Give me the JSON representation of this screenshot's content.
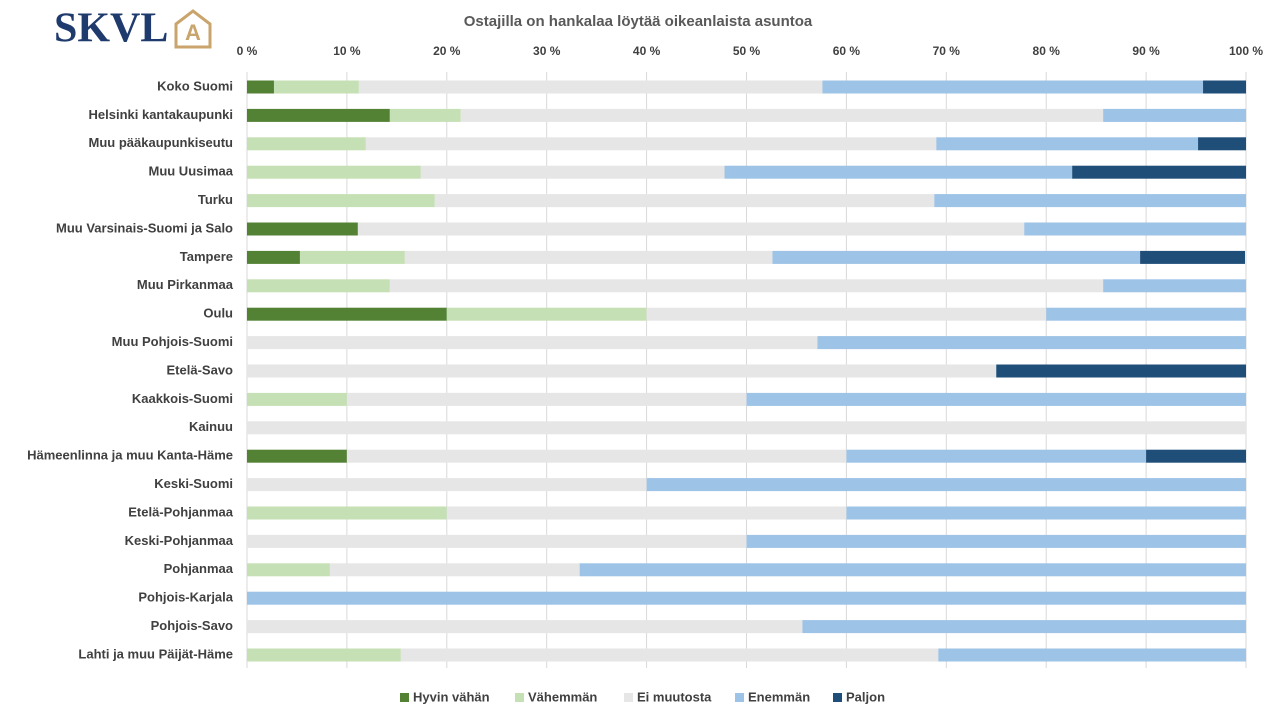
{
  "logo": {
    "text": "SKVL",
    "mark": "A"
  },
  "chart_data": {
    "type": "stacked-bar-horizontal",
    "title": "Ostajilla on hankalaa  löytää oikeanlaista asuntoa",
    "categories": [
      "Koko Suomi",
      "Helsinki kantakaupunki",
      "Muu pääkaupunkiseutu",
      "Muu Uusimaa",
      "Turku",
      "Muu Varsinais-Suomi ja Salo",
      "Tampere",
      "Muu Pirkanmaa",
      "Oulu",
      "Muu Pohjois-Suomi",
      "Etelä-Savo",
      "Kaakkois-Suomi",
      "Kainuu",
      "Hämeenlinna ja muu Kanta-Häme",
      "Keski-Suomi",
      "Etelä-Pohjanmaa",
      "Keski-Pohjanmaa",
      "Pohjanmaa",
      "Pohjois-Karjala",
      "Pohjois-Savo",
      "Lahti ja muu Päijät-Häme"
    ],
    "series": [
      {
        "name": "Hyvin vähän",
        "color": "#548235",
        "values": [
          2.7,
          14.3,
          0,
          0,
          0,
          11.1,
          5.3,
          0,
          20,
          0,
          0,
          0,
          0,
          10,
          0,
          0,
          0,
          0,
          0,
          0,
          0
        ]
      },
      {
        "name": "Vähemmän",
        "color": "#c5e0b4",
        "values": [
          8.5,
          7.1,
          11.9,
          17.4,
          18.8,
          0,
          10.5,
          14.3,
          20,
          0,
          0,
          10,
          0,
          0,
          0,
          20,
          0,
          8.3,
          0,
          0,
          15.4
        ]
      },
      {
        "name": "Ei muutosta",
        "color": "#e7e6e6",
        "values": [
          46.4,
          64.3,
          57.1,
          30.4,
          50,
          66.7,
          36.8,
          71.4,
          40,
          57.1,
          75,
          40,
          100,
          50,
          40,
          40,
          50,
          25,
          0,
          55.6,
          53.8
        ]
      },
      {
        "name": "Enemmän",
        "color": "#9dc3e6",
        "values": [
          38.1,
          14.3,
          26.2,
          34.8,
          31.2,
          22.2,
          36.8,
          14.3,
          20,
          42.9,
          0,
          50,
          0,
          30,
          60,
          40,
          50,
          66.7,
          100,
          44.4,
          30.8
        ]
      },
      {
        "name": "Paljon",
        "color": "#1f4e79",
        "values": [
          4.3,
          0,
          4.8,
          17.4,
          0,
          0,
          10.5,
          0,
          0,
          0,
          25,
          0,
          0,
          10,
          0,
          0,
          0,
          0,
          0,
          0,
          0
        ]
      }
    ],
    "xlim": [
      0,
      100
    ],
    "xticks": [
      {
        "value": 0,
        "label": "0 %"
      },
      {
        "value": 10,
        "label": "10 %"
      },
      {
        "value": 20,
        "label": "20 %"
      },
      {
        "value": 30,
        "label": "30 %"
      },
      {
        "value": 40,
        "label": "40 %"
      },
      {
        "value": 50,
        "label": "50 %"
      },
      {
        "value": 60,
        "label": "60 %"
      },
      {
        "value": 70,
        "label": "70 %"
      },
      {
        "value": 80,
        "label": "80 %"
      },
      {
        "value": 90,
        "label": "90 %"
      },
      {
        "value": 100,
        "label": "100 %"
      }
    ],
    "grid": true,
    "legend": "bottom"
  }
}
